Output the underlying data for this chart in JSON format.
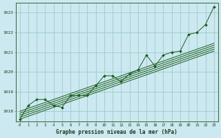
{
  "title": "Graphe pression niveau de la mer (hPa)",
  "bg_color": "#cce8f0",
  "grid_color": "#99cccc",
  "line_color": "#1a5c1a",
  "x_hours": [
    0,
    1,
    2,
    3,
    4,
    5,
    6,
    7,
    8,
    9,
    10,
    11,
    12,
    13,
    14,
    15,
    16,
    17,
    18,
    19,
    20,
    21,
    22,
    23
  ],
  "main_line": [
    1017.6,
    1018.3,
    1018.6,
    1018.6,
    1018.3,
    1018.2,
    1018.8,
    1018.8,
    1018.8,
    1019.3,
    1019.8,
    1019.8,
    1019.5,
    1019.9,
    1020.1,
    1020.85,
    1020.3,
    1020.85,
    1021.0,
    1021.05,
    1021.9,
    1022.0,
    1022.4,
    1023.3
  ],
  "trend1": [
    1018.0,
    1018.15,
    1018.3,
    1018.45,
    1018.6,
    1018.75,
    1018.9,
    1019.05,
    1019.2,
    1019.35,
    1019.5,
    1019.65,
    1019.8,
    1019.95,
    1020.1,
    1020.25,
    1020.4,
    1020.55,
    1020.7,
    1020.85,
    1021.0,
    1021.15,
    1021.3,
    1021.45
  ],
  "trend2": [
    1017.9,
    1018.05,
    1018.2,
    1018.35,
    1018.5,
    1018.65,
    1018.8,
    1018.95,
    1019.1,
    1019.25,
    1019.4,
    1019.55,
    1019.7,
    1019.85,
    1020.0,
    1020.15,
    1020.3,
    1020.45,
    1020.6,
    1020.75,
    1020.9,
    1021.05,
    1021.2,
    1021.35
  ],
  "trend3": [
    1017.8,
    1017.95,
    1018.1,
    1018.25,
    1018.4,
    1018.55,
    1018.7,
    1018.85,
    1019.0,
    1019.15,
    1019.3,
    1019.45,
    1019.6,
    1019.75,
    1019.9,
    1020.05,
    1020.2,
    1020.35,
    1020.5,
    1020.65,
    1020.8,
    1020.95,
    1021.1,
    1021.25
  ],
  "trend4": [
    1017.7,
    1017.85,
    1018.0,
    1018.15,
    1018.3,
    1018.45,
    1018.6,
    1018.75,
    1018.9,
    1019.05,
    1019.2,
    1019.35,
    1019.5,
    1019.65,
    1019.8,
    1019.95,
    1020.1,
    1020.25,
    1020.4,
    1020.55,
    1020.7,
    1020.85,
    1021.0,
    1021.15
  ],
  "trend5": [
    1017.6,
    1017.75,
    1017.9,
    1018.05,
    1018.2,
    1018.35,
    1018.5,
    1018.65,
    1018.8,
    1018.95,
    1019.1,
    1019.25,
    1019.4,
    1019.55,
    1019.7,
    1019.85,
    1020.0,
    1020.15,
    1020.3,
    1020.45,
    1020.6,
    1020.75,
    1020.9,
    1021.05
  ],
  "ylim_min": 1017.5,
  "ylim_max": 1023.5,
  "yticks": [
    1018,
    1019,
    1020,
    1021,
    1022,
    1023
  ]
}
